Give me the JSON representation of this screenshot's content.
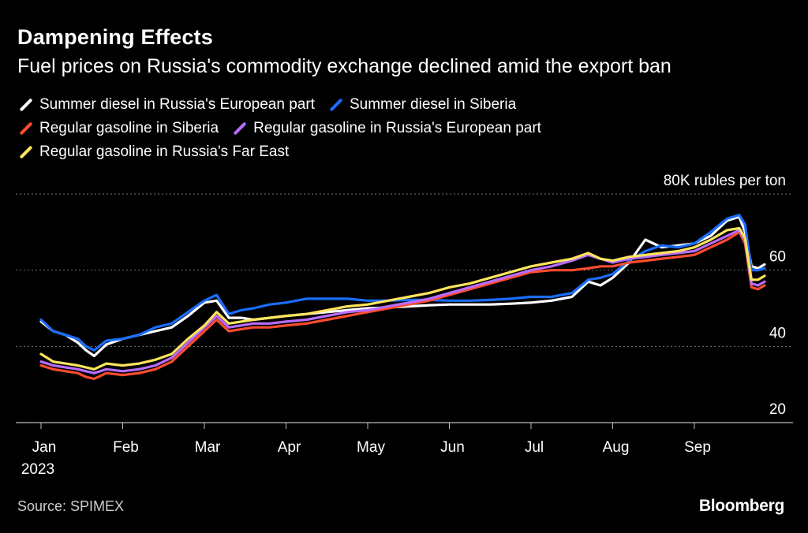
{
  "header": {
    "title": "Dampening Effects",
    "subtitle": "Fuel prices on Russia's commodity exchange declined amid the export ban"
  },
  "footer": {
    "source": "Source: SPIMEX",
    "brand": "Bloomberg"
  },
  "chart_data": {
    "type": "line",
    "title": "Dampening Effects",
    "subtitle": "Fuel prices on Russia's commodity exchange declined amid the export ban",
    "ylabel": "80K rubles per ton",
    "ylim": [
      20,
      80
    ],
    "yticks": [
      {
        "value": 80,
        "label": "80K rubles per ton"
      },
      {
        "value": 60,
        "label": "60"
      },
      {
        "value": 40,
        "label": "40"
      },
      {
        "value": 20,
        "label": "20"
      }
    ],
    "xlim": [
      0,
      9
    ],
    "xticks": [
      {
        "value": 0,
        "label": "Jan",
        "sublabel": "2023"
      },
      {
        "value": 1,
        "label": "Feb"
      },
      {
        "value": 2,
        "label": "Mar"
      },
      {
        "value": 3,
        "label": "Apr"
      },
      {
        "value": 4,
        "label": "May"
      },
      {
        "value": 5,
        "label": "Jun"
      },
      {
        "value": 6,
        "label": "Jul"
      },
      {
        "value": 7,
        "label": "Aug"
      },
      {
        "value": 8,
        "label": "Sep"
      }
    ],
    "legend_position": "top-left",
    "grid": true,
    "x_note": "x values are months elapsed since Jan 1, 2023",
    "series": [
      {
        "name": "Summer diesel in Russia's European part",
        "color": "#ffffff",
        "x": [
          0,
          0.15,
          0.3,
          0.45,
          0.55,
          0.65,
          0.8,
          1.0,
          1.2,
          1.4,
          1.6,
          1.8,
          2.0,
          2.15,
          2.3,
          2.45,
          2.6,
          2.8,
          3.0,
          3.25,
          3.5,
          3.75,
          4.0,
          4.25,
          4.5,
          4.75,
          5.0,
          5.25,
          5.5,
          5.75,
          6.0,
          6.25,
          6.5,
          6.7,
          6.85,
          7.0,
          7.2,
          7.4,
          7.6,
          7.8,
          8.0,
          8.2,
          8.4,
          8.55,
          8.62,
          8.7,
          8.78,
          8.86
        ],
        "y": [
          46.5,
          44,
          43,
          41,
          39,
          37.5,
          40.5,
          42,
          43,
          44,
          45,
          48,
          51.5,
          52,
          47.5,
          47.5,
          47,
          47.5,
          48,
          48.5,
          49,
          49.5,
          50,
          50.2,
          50.5,
          50.8,
          51,
          51,
          51,
          51.2,
          51.5,
          52,
          53,
          57,
          56,
          58,
          62,
          68,
          66,
          66.5,
          67,
          69,
          73,
          74,
          70,
          61,
          60.5,
          61.5
        ]
      },
      {
        "name": "Summer diesel in Siberia",
        "color": "#1a6dff",
        "x": [
          0,
          0.15,
          0.3,
          0.45,
          0.55,
          0.65,
          0.8,
          1.0,
          1.2,
          1.4,
          1.6,
          1.8,
          2.0,
          2.15,
          2.3,
          2.45,
          2.6,
          2.8,
          3.0,
          3.25,
          3.5,
          3.75,
          4.0,
          4.25,
          4.5,
          4.75,
          5.0,
          5.25,
          5.5,
          5.75,
          6.0,
          6.25,
          6.5,
          6.7,
          6.85,
          7.0,
          7.2,
          7.4,
          7.6,
          7.8,
          8.0,
          8.2,
          8.4,
          8.55,
          8.62,
          8.7,
          8.78,
          8.86
        ],
        "y": [
          47,
          44,
          43,
          42,
          40,
          39,
          41.5,
          42,
          43,
          45,
          46,
          49,
          52,
          53.5,
          48.5,
          49.5,
          50,
          51,
          51.5,
          52.5,
          52.5,
          52.5,
          52,
          52,
          52.2,
          52.2,
          52,
          52,
          52.2,
          52.5,
          53,
          53,
          54,
          57.5,
          58,
          59,
          62.5,
          65,
          66.5,
          66,
          67,
          70,
          73.5,
          74.5,
          72,
          60,
          60,
          60.5
        ]
      },
      {
        "name": "Regular gasoline in Siberia",
        "color": "#ff4d2e",
        "x": [
          0,
          0.15,
          0.3,
          0.45,
          0.55,
          0.65,
          0.8,
          1.0,
          1.2,
          1.4,
          1.6,
          1.8,
          2.0,
          2.15,
          2.3,
          2.45,
          2.6,
          2.8,
          3.0,
          3.25,
          3.5,
          3.75,
          4.0,
          4.25,
          4.5,
          4.75,
          5.0,
          5.25,
          5.5,
          5.75,
          6.0,
          6.25,
          6.5,
          6.7,
          6.85,
          7.0,
          7.2,
          7.4,
          7.6,
          7.8,
          8.0,
          8.2,
          8.4,
          8.55,
          8.62,
          8.7,
          8.78,
          8.86
        ],
        "y": [
          35,
          34,
          33.5,
          33,
          32,
          31.5,
          33,
          32.5,
          33,
          34,
          36,
          40,
          44,
          47,
          44,
          44.5,
          45,
          45,
          45.5,
          46,
          47,
          48,
          49,
          50,
          51,
          52,
          53.5,
          55,
          56.5,
          58,
          59.5,
          60,
          60,
          60.5,
          61,
          61,
          62,
          62.5,
          63,
          63.5,
          64,
          66,
          68,
          70,
          67,
          55.5,
          55,
          56
        ]
      },
      {
        "name": "Regular gasoline in Russia's European part",
        "color": "#b86cff",
        "x": [
          0,
          0.15,
          0.3,
          0.45,
          0.55,
          0.65,
          0.8,
          1.0,
          1.2,
          1.4,
          1.6,
          1.8,
          2.0,
          2.15,
          2.3,
          2.45,
          2.6,
          2.8,
          3.0,
          3.25,
          3.5,
          3.75,
          4.0,
          4.25,
          4.5,
          4.75,
          5.0,
          5.25,
          5.5,
          5.75,
          6.0,
          6.25,
          6.5,
          6.7,
          6.85,
          7.0,
          7.2,
          7.4,
          7.6,
          7.8,
          8.0,
          8.2,
          8.4,
          8.55,
          8.62,
          8.7,
          8.78,
          8.86
        ],
        "y": [
          36,
          35,
          34.5,
          34,
          33.5,
          33,
          34,
          33.5,
          34,
          35,
          37,
          41,
          45,
          48,
          45,
          45.5,
          46,
          46,
          46.5,
          47,
          48,
          49,
          49.5,
          50.5,
          51.5,
          52.5,
          54,
          55.5,
          57,
          58.5,
          60,
          61,
          62.5,
          64,
          63,
          62,
          63,
          63.5,
          64,
          64.5,
          65,
          67,
          69,
          70.5,
          68,
          56.5,
          56,
          57
        ]
      },
      {
        "name": "Regular gasoline in Russia's Far East",
        "color": "#ffe45c",
        "x": [
          0,
          0.15,
          0.3,
          0.45,
          0.55,
          0.65,
          0.8,
          1.0,
          1.2,
          1.4,
          1.6,
          1.8,
          2.0,
          2.15,
          2.3,
          2.45,
          2.6,
          2.8,
          3.0,
          3.25,
          3.5,
          3.75,
          4.0,
          4.25,
          4.5,
          4.75,
          5.0,
          5.25,
          5.5,
          5.75,
          6.0,
          6.25,
          6.5,
          6.7,
          6.85,
          7.0,
          7.2,
          7.4,
          7.6,
          7.8,
          8.0,
          8.2,
          8.4,
          8.55,
          8.62,
          8.7,
          8.78,
          8.86
        ],
        "y": [
          38,
          36,
          35.5,
          35,
          34.5,
          34,
          35.5,
          35,
          35.5,
          36.5,
          38,
          42,
          45.5,
          49,
          46,
          46.5,
          47,
          47.5,
          48,
          48.5,
          49.5,
          50.5,
          51,
          52,
          53,
          54,
          55.5,
          56.5,
          58,
          59.5,
          61,
          62,
          63,
          64.5,
          63,
          62.5,
          63.5,
          64,
          64.5,
          65,
          66,
          68,
          70.5,
          71,
          68.5,
          57.5,
          57.5,
          58.5
        ]
      }
    ]
  }
}
